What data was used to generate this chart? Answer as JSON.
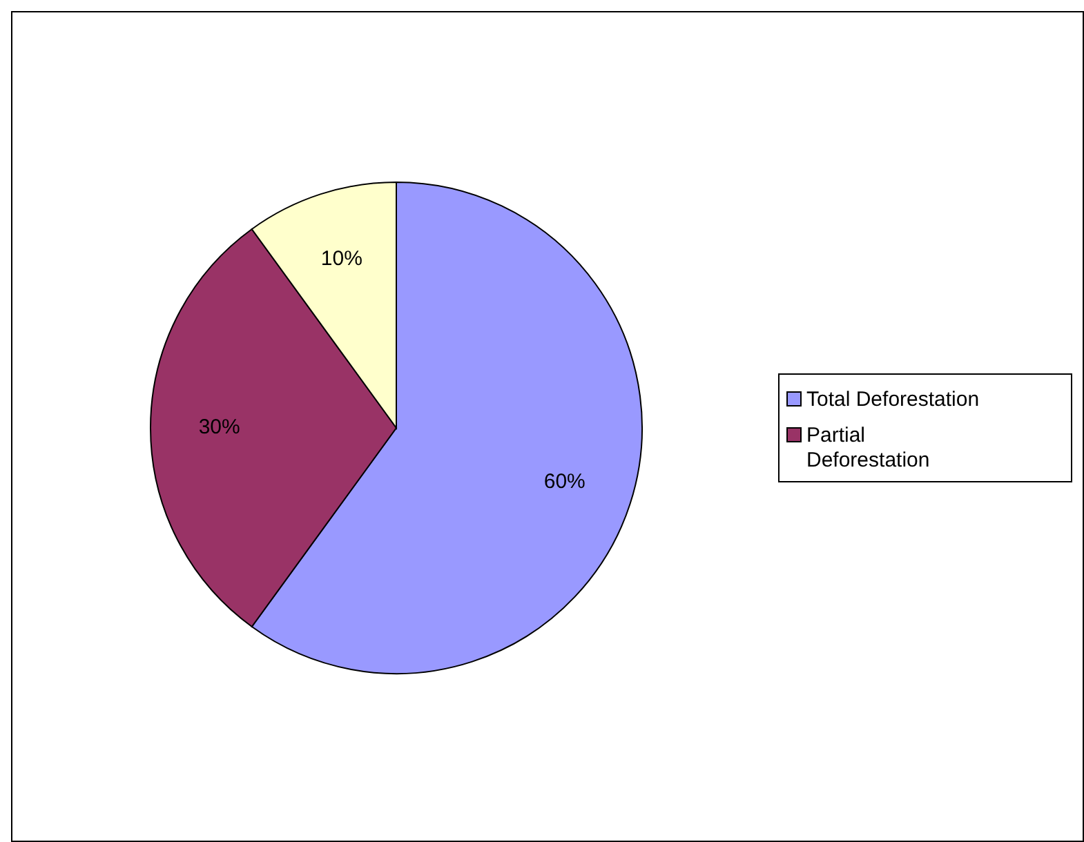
{
  "chart_data": {
    "type": "pie",
    "categories": [
      "Total Deforestation",
      "Partial Deforestation",
      null
    ],
    "values": [
      60,
      30,
      10
    ],
    "colors": [
      "#9999ff",
      "#993366",
      "#ffffcc"
    ],
    "value_labels": [
      "60%",
      "30%",
      "10%"
    ],
    "legend": "right"
  }
}
